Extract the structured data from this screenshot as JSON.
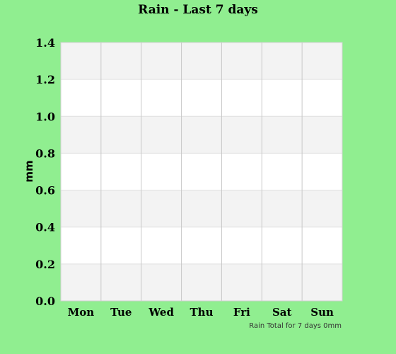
{
  "chart_data": {
    "type": "bar",
    "title": "Rain - Last 7 days",
    "ylabel": "mm",
    "xlabel": "",
    "categories": [
      "Mon",
      "Tue",
      "Wed",
      "Thu",
      "Fri",
      "Sat",
      "Sun"
    ],
    "values": [
      0,
      0,
      0,
      0,
      0,
      0,
      0
    ],
    "ylim": [
      0,
      1.4
    ],
    "yticks": [
      "0.0",
      "0.2",
      "0.4",
      "0.6",
      "0.8",
      "1.0",
      "1.2",
      "1.4"
    ],
    "grid": true,
    "footer": "Rain Total for 7 days 0mm",
    "colors": {
      "background": "#90ee90",
      "plot": "#ffffff",
      "band": "#f3f3f3",
      "grid": "#c8c8c8",
      "bar": "#3366cc"
    }
  }
}
